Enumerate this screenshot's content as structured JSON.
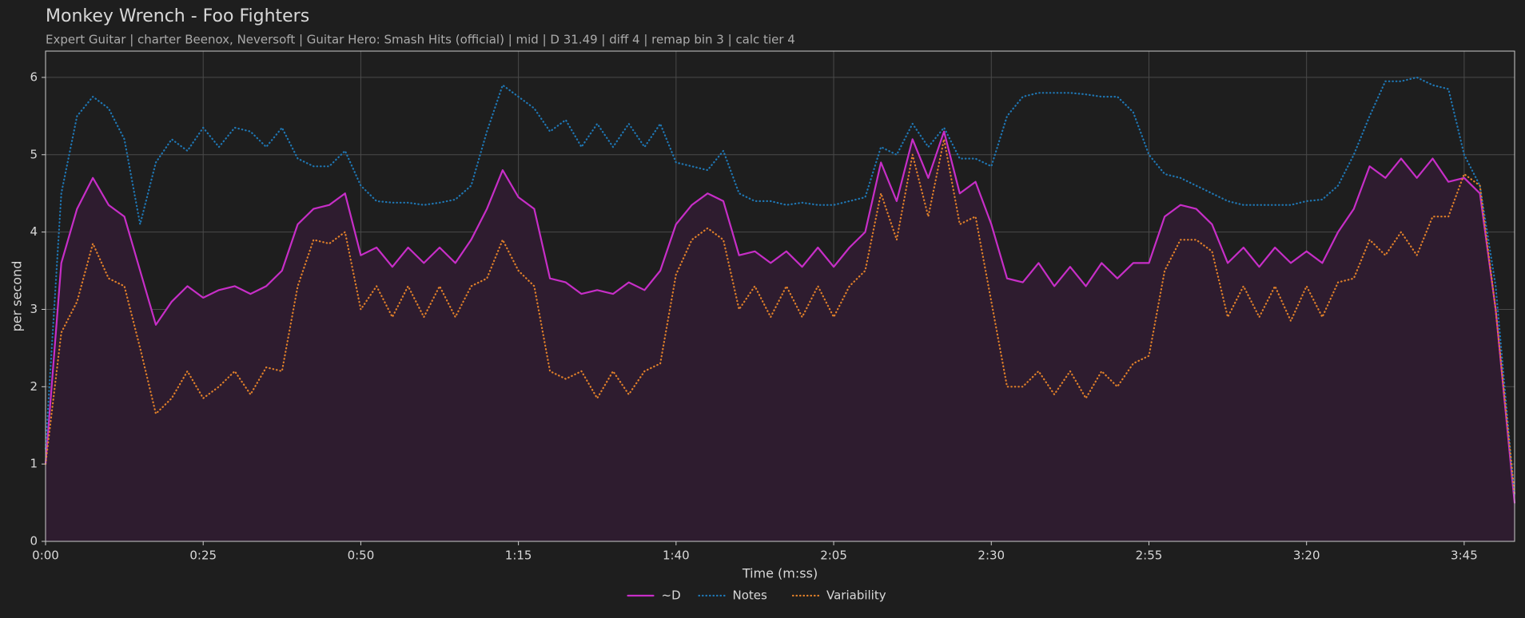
{
  "chart_data": {
    "type": "line",
    "title": "Monkey Wrench - Foo Fighters",
    "subtitle": "Expert Guitar  |  charter Beenox,  Neversoft  |  Guitar Hero: Smash Hits (official)  |  mid  |  D 31.49  |  diff 4  |  remap bin 3  |  calc tier 4",
    "x_label": "Time (m:ss)",
    "y_label": "per second",
    "xlim": [
      0,
      233
    ],
    "ylim": [
      0,
      6.34
    ],
    "xticks": [
      {
        "value": 0,
        "label": "0:00"
      },
      {
        "value": 25,
        "label": "0:25"
      },
      {
        "value": 50,
        "label": "0:50"
      },
      {
        "value": 75,
        "label": "1:15"
      },
      {
        "value": 100,
        "label": "1:40"
      },
      {
        "value": 125,
        "label": "2:05"
      },
      {
        "value": 150,
        "label": "2:30"
      },
      {
        "value": 175,
        "label": "2:55"
      },
      {
        "value": 200,
        "label": "3:20"
      },
      {
        "value": 225,
        "label": "3:45"
      }
    ],
    "yticks": [
      0,
      1,
      2,
      3,
      4,
      5,
      6
    ],
    "grid": true,
    "legend": "bottom",
    "x": [
      0,
      2.5,
      5,
      7.5,
      10,
      12.5,
      15,
      17.5,
      20,
      22.5,
      25,
      27.5,
      30,
      32.5,
      35,
      37.5,
      40,
      42.5,
      45,
      47.5,
      50,
      52.5,
      55,
      57.5,
      60,
      62.5,
      65,
      67.5,
      70,
      72.5,
      75,
      77.5,
      80,
      82.5,
      85,
      87.5,
      90,
      92.5,
      95,
      97.5,
      100,
      102.5,
      105,
      107.5,
      110,
      112.5,
      115,
      117.5,
      120,
      122.5,
      125,
      127.5,
      130,
      132.5,
      135,
      137.5,
      140,
      142.5,
      145,
      147.5,
      150,
      152.5,
      155,
      157.5,
      160,
      162.5,
      165,
      167.5,
      170,
      172.5,
      175,
      177.5,
      180,
      182.5,
      185,
      187.5,
      190,
      192.5,
      195,
      197.5,
      200,
      202.5,
      205,
      207.5,
      210,
      212.5,
      215,
      217.5,
      220,
      222.5,
      225,
      227.5,
      230,
      232.5,
      233
    ],
    "series": [
      {
        "name": "~D",
        "color": "#c72ec7",
        "style": "solid",
        "fill": "#2e1c2f",
        "values": [
          1.0,
          3.6,
          4.3,
          4.7,
          4.35,
          4.2,
          3.5,
          2.8,
          3.1,
          3.3,
          3.15,
          3.25,
          3.3,
          3.2,
          3.3,
          3.5,
          4.1,
          4.3,
          4.35,
          4.5,
          3.7,
          3.8,
          3.55,
          3.8,
          3.6,
          3.8,
          3.6,
          3.9,
          4.3,
          4.8,
          4.45,
          4.3,
          3.4,
          3.35,
          3.2,
          3.25,
          3.2,
          3.35,
          3.25,
          3.5,
          4.1,
          4.35,
          4.5,
          4.4,
          3.7,
          3.75,
          3.6,
          3.75,
          3.55,
          3.8,
          3.55,
          3.8,
          4.0,
          4.9,
          4.4,
          5.2,
          4.7,
          5.3,
          4.5,
          4.65,
          4.1,
          3.4,
          3.35,
          3.6,
          3.3,
          3.55,
          3.3,
          3.6,
          3.4,
          3.6,
          3.6,
          4.2,
          4.35,
          4.3,
          4.1,
          3.6,
          3.8,
          3.55,
          3.8,
          3.6,
          3.75,
          3.6,
          4.0,
          4.3,
          4.85,
          4.7,
          4.95,
          4.7,
          4.95,
          4.65,
          4.7,
          4.5,
          3.0,
          0.9,
          0.5
        ]
      },
      {
        "name": "Notes",
        "color": "#1f77b4",
        "style": "dotted",
        "values": [
          1.2,
          4.5,
          5.5,
          5.75,
          5.6,
          5.2,
          4.1,
          4.9,
          5.2,
          5.05,
          5.35,
          5.1,
          5.35,
          5.3,
          5.1,
          5.35,
          4.95,
          4.85,
          4.85,
          5.05,
          4.6,
          4.4,
          4.38,
          4.38,
          4.35,
          4.38,
          4.42,
          4.6,
          5.3,
          5.9,
          5.75,
          5.6,
          5.3,
          5.45,
          5.1,
          5.4,
          5.1,
          5.4,
          5.1,
          5.4,
          4.9,
          4.85,
          4.8,
          5.05,
          4.5,
          4.4,
          4.4,
          4.35,
          4.38,
          4.35,
          4.35,
          4.4,
          4.45,
          5.1,
          5.0,
          5.4,
          5.1,
          5.35,
          4.95,
          4.95,
          4.85,
          5.5,
          5.75,
          5.8,
          5.8,
          5.8,
          5.78,
          5.75,
          5.75,
          5.55,
          5.0,
          4.75,
          4.7,
          4.6,
          4.5,
          4.4,
          4.35,
          4.35,
          4.35,
          4.35,
          4.4,
          4.42,
          4.6,
          5.0,
          5.5,
          5.95,
          5.95,
          6.0,
          5.9,
          5.85,
          5.0,
          4.6,
          3.3,
          1.0,
          0.6
        ]
      },
      {
        "name": "Variability",
        "color": "#e0802a",
        "style": "dotted",
        "values": [
          1.0,
          2.7,
          3.1,
          3.85,
          3.4,
          3.3,
          2.5,
          1.65,
          1.85,
          2.2,
          1.85,
          2.0,
          2.2,
          1.9,
          2.25,
          2.2,
          3.3,
          3.9,
          3.85,
          4.0,
          3.0,
          3.3,
          2.9,
          3.3,
          2.9,
          3.3,
          2.9,
          3.3,
          3.4,
          3.9,
          3.5,
          3.3,
          2.2,
          2.1,
          2.2,
          1.85,
          2.2,
          1.9,
          2.2,
          2.3,
          3.45,
          3.9,
          4.05,
          3.9,
          3.0,
          3.3,
          2.9,
          3.3,
          2.9,
          3.3,
          2.9,
          3.3,
          3.5,
          4.5,
          3.9,
          5.0,
          4.2,
          5.2,
          4.1,
          4.2,
          3.1,
          2.0,
          2.0,
          2.2,
          1.9,
          2.2,
          1.85,
          2.2,
          2.0,
          2.3,
          2.4,
          3.5,
          3.9,
          3.9,
          3.75,
          2.9,
          3.3,
          2.9,
          3.3,
          2.85,
          3.3,
          2.9,
          3.35,
          3.4,
          3.9,
          3.7,
          4.0,
          3.7,
          4.2,
          4.2,
          4.75,
          4.6,
          3.0,
          1.0,
          0.6
        ]
      }
    ]
  }
}
